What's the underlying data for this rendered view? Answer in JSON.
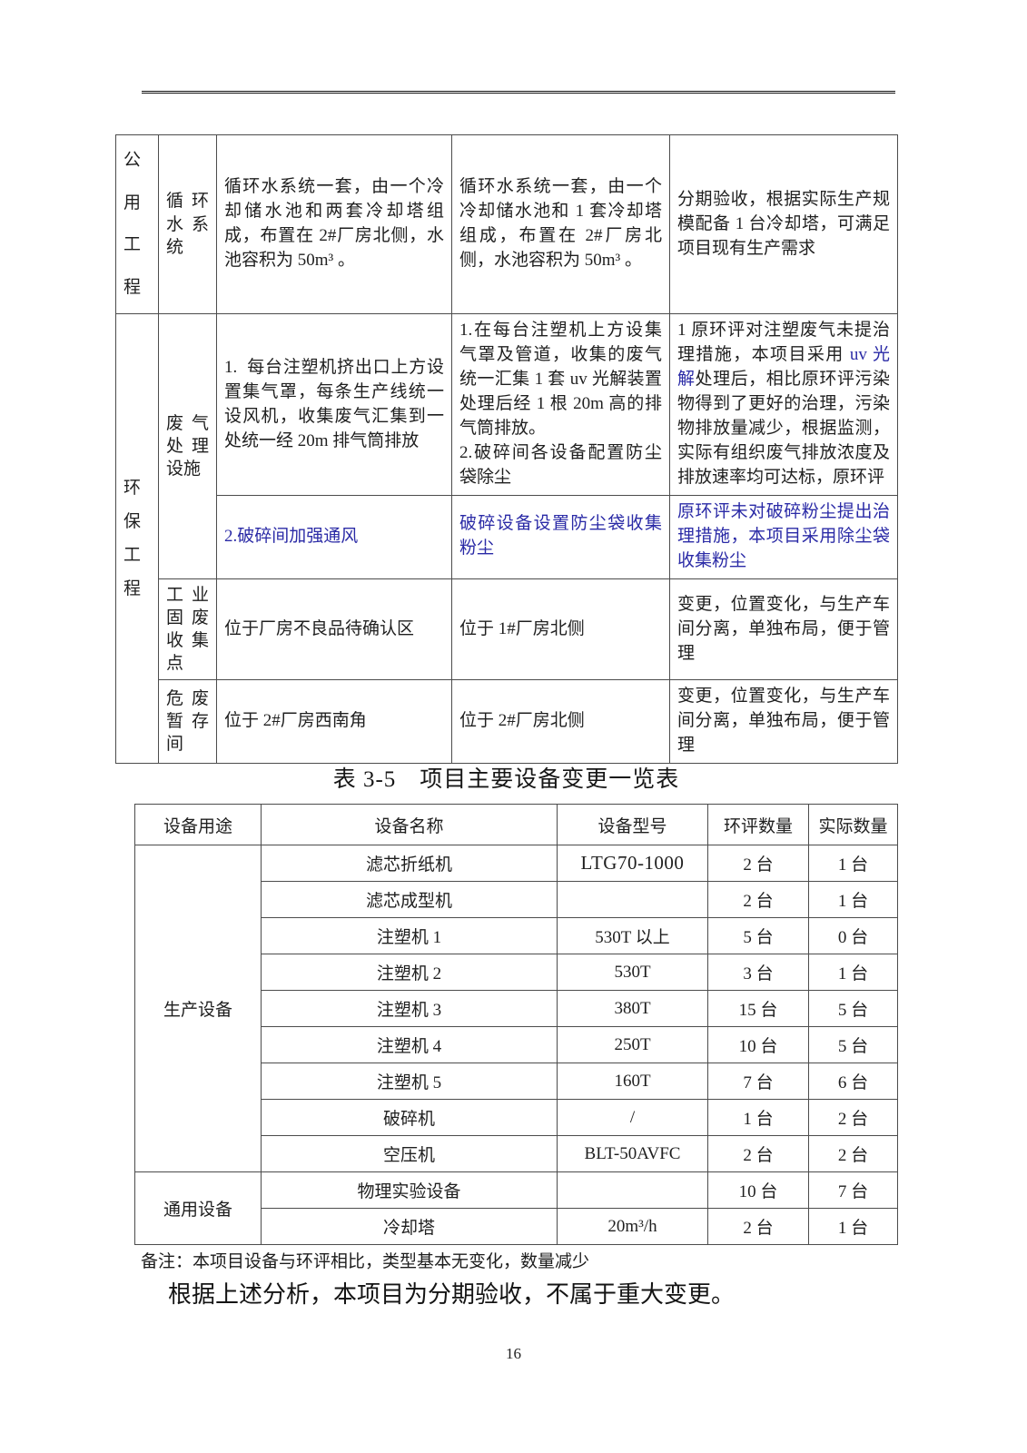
{
  "change_table": {
    "utility": {
      "category": "公用工程",
      "item": "循环水系统",
      "original": "循环水系统一套，由一个冷却储水池和两套冷却塔组成，布置在 2#厂房北侧，水池容积为 50m³ 。",
      "actual": "循环水系统一套，由一个冷却储水池和 1 套冷却塔组成，布置在 2#厂房北侧，水池容积为 50m³ 。",
      "remark": "分期验收，根据实际生产规模配备 1 台冷却塔，可满足项目现有生产需求"
    },
    "environment": {
      "category": "环保工程",
      "waste_gas": {
        "item": "废气处理设施",
        "original_1": "1.  每台注塑机挤出口上方设置集气罩，每条生产线统一设风机，收集废气汇集到一处统一经 20m 排气筒排放",
        "actual_1": "1.在每台注塑机上方设集气罩及管道，收集的废气统一汇集 1 套 uv 光解装置处理后经 1 根 20m 高的排气筒排放。\n2.破碎间各设备配置防尘袋除尘",
        "remark_1_pre": "1 原环评对注塑废气未提治理措施，本项目采用 ",
        "remark_1_highlight": "uv 光解",
        "remark_1_post": "处理后，相比原环评污染物得到了更好的治理，污染物排放量减少，根据监测，实际有组织废气排放浓度及排放速率均可达标，原环评",
        "original_2": "2.破碎间加强通风",
        "actual_2": "破碎设备设置防尘袋收集粉尘",
        "remark_2": "原环评未对破碎粉尘提出治理措施，本项目采用除尘袋收集粉尘"
      },
      "solid_waste": {
        "item": "工业固废收集点",
        "original": "位于厂房不良品待确认区",
        "actual": "位于 1#厂房北侧",
        "remark": "变更，位置变化，与生产车间分离，单独布局，便于管理"
      },
      "hazardous_waste": {
        "item": "危废暂存间",
        "original": "位于 2#厂房西南角",
        "actual": "位于 2#厂房北侧",
        "remark": "变更，位置变化，与生产车间分离，单独布局，便于管理"
      }
    }
  },
  "equipment_table": {
    "title": "表 3-5　项目主要设备变更一览表",
    "headers": [
      "设备用途",
      "设备名称",
      "设备型号",
      "环评数量",
      "实际数量"
    ],
    "groups": [
      {
        "name": "生产设备",
        "rows": [
          {
            "name": "滤芯折纸机",
            "model": "LTG70-1000",
            "eia_qty": "2 台",
            "actual_qty": "1 台"
          },
          {
            "name": "滤芯成型机",
            "model": "",
            "eia_qty": "2 台",
            "actual_qty": "1 台"
          },
          {
            "name": "注塑机 1",
            "model": "530T 以上",
            "eia_qty": "5 台",
            "actual_qty": "0 台"
          },
          {
            "name": "注塑机 2",
            "model": "530T",
            "eia_qty": "3 台",
            "actual_qty": "1 台"
          },
          {
            "name": "注塑机 3",
            "model": "380T",
            "eia_qty": "15 台",
            "actual_qty": "5 台"
          },
          {
            "name": "注塑机 4",
            "model": "250T",
            "eia_qty": "10 台",
            "actual_qty": "5 台"
          },
          {
            "name": "注塑机 5",
            "model": "160T",
            "eia_qty": "7 台",
            "actual_qty": "6 台"
          },
          {
            "name": "破碎机",
            "model": "/",
            "eia_qty": "1 台",
            "actual_qty": "2 台"
          },
          {
            "name": "空压机",
            "model": "BLT-50AVFC",
            "eia_qty": "2 台",
            "actual_qty": "2 台"
          }
        ]
      },
      {
        "name": "通用设备",
        "rows": [
          {
            "name": "物理实验设备",
            "model": "",
            "eia_qty": "10 台",
            "actual_qty": "7 台"
          },
          {
            "name": "冷却塔",
            "model": "20m³/h",
            "eia_qty": "2 台",
            "actual_qty": "1 台"
          }
        ]
      }
    ]
  },
  "footer": {
    "note": "备注：本项目设备与环评相比，类型基本无变化，数量减少",
    "conclusion": "根据上述分析，本项目为分期验收，不属于重大变更。",
    "page_number": "16"
  },
  "colors": {
    "highlight_blue": "#2a2aa6",
    "text_black": "#1f1f1f",
    "border_gray": "#4c4c4c"
  }
}
